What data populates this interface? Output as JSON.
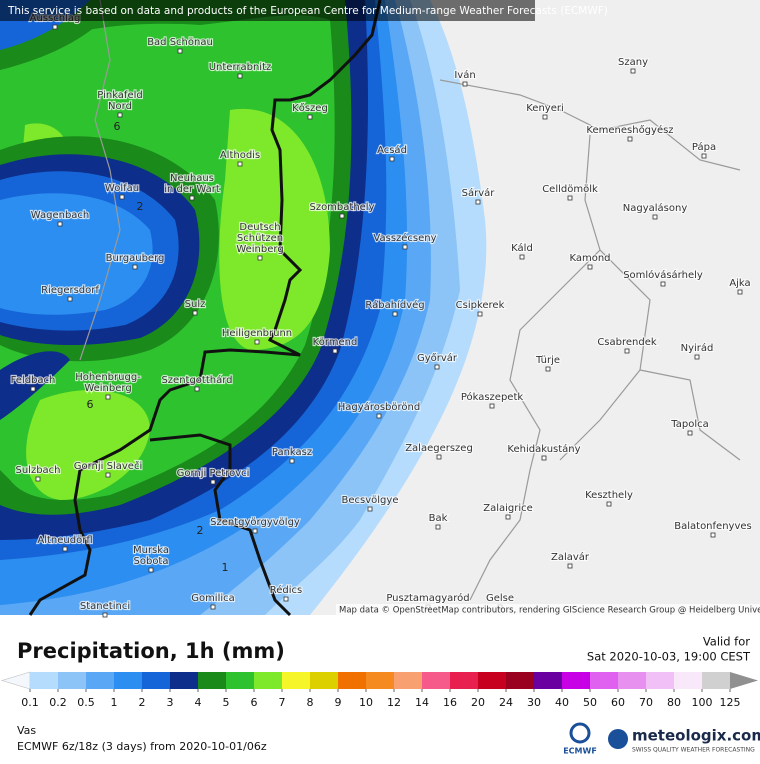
{
  "header": {
    "notice": "This service is based on data and products of the European Centre for Medium-range Weather Forecasts (ECMWF)"
  },
  "map": {
    "places": [
      [
        "Ausschlag"
      ],
      [
        "Bad Schönau"
      ],
      [
        "Unterrabnitz"
      ],
      [
        "Szany"
      ],
      [
        "Iván"
      ],
      [
        "Pinkafeld",
        "Nord"
      ],
      [
        "Kőszeg"
      ],
      [
        "Kenyeri"
      ],
      [
        "Kemeneshőgyész"
      ],
      [
        "Pápa"
      ],
      [
        "Althodis"
      ],
      [
        "Acsád"
      ],
      [
        "Wolfau"
      ],
      [
        "Neuhaus",
        "in der Wart"
      ],
      [
        "Sárvár"
      ],
      [
        "Celldömölk"
      ],
      [
        "Szombathely"
      ],
      [
        "Nagyalásony"
      ],
      [
        "Wagenbach"
      ],
      [
        "Deutsch",
        "Schützen",
        "Weinberg"
      ],
      [
        "Vasszécseny"
      ],
      [
        "Káld"
      ],
      [
        "Kamond"
      ],
      [
        "Burgauberg"
      ],
      [
        "Somlóvásárhely"
      ],
      [
        "Riegersdorf"
      ],
      [
        "Ajka"
      ],
      [
        "Sulz"
      ],
      [
        "Rábahídvég"
      ],
      [
        "Csipkerek"
      ],
      [
        "Heiligenbrunn"
      ],
      [
        "Csabrendek"
      ],
      [
        "Körmend"
      ],
      [
        "Nyirád"
      ],
      [
        "Türje"
      ],
      [
        "Győrvár"
      ],
      [
        "Feldbach"
      ],
      [
        "Hohenbrugg-",
        "Weinberg"
      ],
      [
        "Szentgotthárd"
      ],
      [
        "Pókaszepetk"
      ],
      [
        "Hagyárosbörönd"
      ],
      [
        "Tapolca"
      ],
      [
        "Zalaegerszeg"
      ],
      [
        "Kehidakustány"
      ],
      [
        "Pankasz"
      ],
      [
        "Sulzbach"
      ],
      [
        "Gornji Slaveči"
      ],
      [
        "Gornji Petrovci"
      ],
      [
        "Keszthely"
      ],
      [
        "Becsvölgye"
      ],
      [
        "Zalaigrice"
      ],
      [
        "Bak"
      ],
      [
        "Szentgyörgyvölgy"
      ],
      [
        "Balatonfenyves"
      ],
      [
        "Altneudörfl"
      ],
      [
        "Murska",
        "Sobota"
      ],
      [
        "Zalavár"
      ],
      [
        "Rédics"
      ],
      [
        "Pusztamagyaród"
      ],
      [
        "Gelse"
      ],
      [
        "Gomilica"
      ],
      [
        "Stanetinci"
      ]
    ],
    "contour_labels": [
      6,
      2,
      6,
      2,
      1
    ],
    "attribution": "Map data © OpenStreetMap contributors, rendering GIScience Research Group @ Heidelberg University"
  },
  "legend": {
    "title": "Precipitation, 1h (mm)",
    "valid_label": "Valid for",
    "valid_time": "Sat 2020-10-03, 19:00 CEST",
    "ticks": [
      0.1,
      0.2,
      0.5,
      1,
      2,
      3,
      4,
      5,
      6,
      7,
      8,
      9,
      10,
      12,
      14,
      16,
      20,
      24,
      30,
      40,
      50,
      60,
      70,
      80,
      100,
      125
    ],
    "colors": [
      "#b5dcfc",
      "#8cc4f8",
      "#5aa8f5",
      "#2c8ef0",
      "#1565d8",
      "#0d2e8a",
      "#1a8a1a",
      "#2fc22f",
      "#7ee82a",
      "#f5f52a",
      "#dcd000",
      "#f07000",
      "#f58a20",
      "#f8a070",
      "#f55a8a",
      "#e82050",
      "#c80020",
      "#9a0020",
      "#6a00a0",
      "#c800e6",
      "#e060f0",
      "#e890f0",
      "#f0c0f6",
      "#f8e8fa",
      "#d0d0d0"
    ],
    "below_color": "#f4f8fc",
    "above_color": "#909090"
  },
  "footer": {
    "region": "Vas",
    "model": "ECMWF 6z/18z (3 days) from 2020-10-01/06z",
    "ecmwf": "ECMWF",
    "logo": "meteologix.com",
    "tagline": "SWISS QUALITY WEATHER FORECASTING"
  }
}
